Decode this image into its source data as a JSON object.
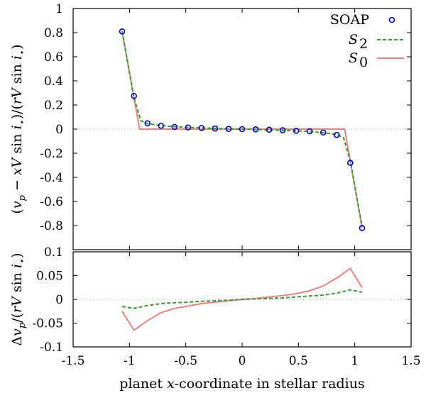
{
  "chart_data": [
    {
      "type": "line",
      "panel": "top",
      "xlabel": "",
      "ylabel": "(v_p − xV sin i⋆)/(rV sin i⋆)",
      "xlim": [
        -1.5,
        1.5
      ],
      "ylim": [
        -1,
        1
      ],
      "xticks": [
        -1.5,
        -1,
        -0.5,
        0,
        0.5,
        1,
        1.5
      ],
      "yticks": [
        -0.8,
        -0.6,
        -0.4,
        -0.2,
        0,
        0.2,
        0.4,
        0.6,
        0.8,
        1
      ],
      "ytick_labels": [
        "-0.8",
        "-0.6",
        "-0.4",
        "-0.2",
        "0",
        "0.2",
        "0.4",
        "0.6",
        "0.8",
        "1"
      ],
      "legend": {
        "position": "top-right",
        "entries": [
          {
            "label": "SOAP",
            "style": "markers"
          },
          {
            "label": "S2",
            "style": "dashed"
          },
          {
            "label": "S0",
            "style": "solid"
          }
        ]
      },
      "zero_line": true,
      "series": [
        {
          "name": "SOAP",
          "style": "markers",
          "color": "#0000cc",
          "x": [
            -1.065,
            -0.96,
            -0.84,
            -0.72,
            -0.6,
            -0.48,
            -0.36,
            -0.24,
            -0.12,
            0,
            0.12,
            0.24,
            0.36,
            0.48,
            0.6,
            0.72,
            0.84,
            0.96,
            1.065
          ],
          "y": [
            0.81,
            0.275,
            0.048,
            0.028,
            0.018,
            0.014,
            0.009,
            0.005,
            0.002,
            0.0,
            -0.002,
            -0.005,
            -0.009,
            -0.014,
            -0.018,
            -0.028,
            -0.048,
            -0.28,
            -0.82
          ]
        },
        {
          "name": "S2",
          "style": "dashed",
          "color": "#2ca02c",
          "x": [
            -1.065,
            -0.96,
            -0.9,
            -0.84,
            -0.72,
            -0.6,
            -0.48,
            -0.36,
            -0.24,
            -0.12,
            0,
            0.12,
            0.24,
            0.36,
            0.48,
            0.6,
            0.72,
            0.84,
            0.9,
            0.96,
            1.065
          ],
          "y": [
            0.81,
            0.26,
            0.07,
            0.045,
            0.03,
            0.02,
            0.014,
            0.01,
            0.006,
            0.003,
            0.0,
            -0.003,
            -0.006,
            -0.01,
            -0.014,
            -0.02,
            -0.03,
            -0.045,
            -0.07,
            -0.26,
            -0.81
          ]
        },
        {
          "name": "S0",
          "style": "solid",
          "color": "#f08080",
          "x": [
            -1.065,
            -0.91,
            0.91,
            1.065
          ],
          "y": [
            0.81,
            0.0,
            0.0,
            -0.82
          ]
        }
      ]
    },
    {
      "type": "line",
      "panel": "bottom",
      "xlabel": "planet x-coordinate in stellar radius",
      "ylabel": "Δv_p/(rV sin i⋆)",
      "xlim": [
        -1.5,
        1.5
      ],
      "ylim": [
        -0.1,
        0.1
      ],
      "xticks": [
        -1.5,
        -1,
        -0.5,
        0,
        0.5,
        1,
        1.5
      ],
      "xtick_labels": [
        "-1.5",
        "-1",
        "-0.5",
        "0",
        "0.5",
        "1",
        "1.5"
      ],
      "yticks": [
        -0.1,
        -0.05,
        0,
        0.05,
        0.1
      ],
      "ytick_labels": [
        "-0.1",
        "-0.05",
        "0",
        "0.05",
        "0.1"
      ],
      "zero_line": true,
      "series": [
        {
          "name": "S2 residual",
          "style": "dashed",
          "color": "#2ca02c",
          "x": [
            -1.065,
            -0.96,
            -0.84,
            -0.72,
            -0.6,
            -0.48,
            -0.36,
            -0.24,
            -0.12,
            0,
            0.12,
            0.24,
            0.36,
            0.48,
            0.6,
            0.72,
            0.84,
            0.96,
            1.065
          ],
          "y": [
            -0.015,
            -0.019,
            -0.013,
            -0.009,
            -0.007,
            -0.006,
            -0.004,
            -0.003,
            -0.002,
            0.0,
            0.001,
            0.002,
            0.003,
            0.005,
            0.007,
            0.009,
            0.013,
            0.02,
            0.015
          ]
        },
        {
          "name": "S0 residual",
          "style": "solid",
          "color": "#f08080",
          "x": [
            -1.065,
            -0.96,
            -0.84,
            -0.72,
            -0.6,
            -0.48,
            -0.36,
            -0.24,
            -0.12,
            0,
            0.12,
            0.24,
            0.36,
            0.48,
            0.6,
            0.72,
            0.84,
            0.96,
            1.065
          ],
          "y": [
            -0.025,
            -0.065,
            -0.045,
            -0.028,
            -0.019,
            -0.014,
            -0.009,
            -0.006,
            -0.003,
            0.0,
            0.002,
            0.005,
            0.008,
            0.012,
            0.018,
            0.028,
            0.045,
            0.065,
            0.025
          ]
        }
      ]
    }
  ]
}
